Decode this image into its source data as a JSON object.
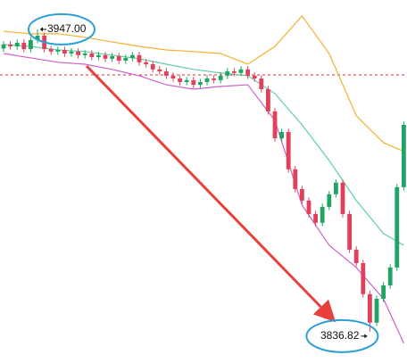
{
  "chart_data": {
    "type": "candlestick",
    "ylim": [
      3825.4,
      3957.7
    ],
    "up_color": "#1fa463",
    "down_color": "#e2405a",
    "open": [
      3940.0,
      3941.5,
      3940.8,
      3942.1,
      3939.8,
      3943.1,
      3944.7,
      3939.8,
      3938.9,
      3939.5,
      3938.2,
      3938.9,
      3937.6,
      3938.2,
      3936.9,
      3937.6,
      3936.3,
      3937.2,
      3935.6,
      3936.6,
      3937.6,
      3935.0,
      3934.3,
      3932.4,
      3931.7,
      3930.1,
      3929.1,
      3927.8,
      3928.5,
      3926.8,
      3927.8,
      3929.1,
      3928.5,
      3930.1,
      3931.7,
      3931.1,
      3932.4,
      3930.1,
      3929.1,
      3925.2,
      3917.1,
      3907.3,
      3909.6,
      3896.0,
      3888.8,
      3884.6,
      3879.7,
      3876.5,
      3882.3,
      3886.9,
      3891.1,
      3879.7,
      3866.7,
      3861.8,
      3850.5,
      3840.1,
      3848.8,
      3853.7,
      3860.2,
      3889.5
    ],
    "high": [
      3942.7,
      3942.7,
      3943.3,
      3943.3,
      3944.3,
      3947.0,
      3945.9,
      3941.0,
      3940.7,
      3940.7,
      3940.1,
      3940.1,
      3939.4,
      3939.4,
      3938.8,
      3938.8,
      3938.4,
      3938.4,
      3937.8,
      3938.8,
      3938.8,
      3936.2,
      3935.5,
      3933.6,
      3932.9,
      3931.3,
      3930.3,
      3929.7,
      3929.7,
      3929.0,
      3930.3,
      3930.3,
      3931.3,
      3932.9,
      3932.9,
      3933.6,
      3933.6,
      3931.3,
      3930.3,
      3926.4,
      3918.3,
      3910.8,
      3910.8,
      3897.2,
      3890.0,
      3885.8,
      3880.9,
      3883.5,
      3888.1,
      3892.3,
      3892.3,
      3880.9,
      3867.9,
      3863.0,
      3851.7,
      3850.0,
      3854.9,
      3861.4,
      3890.7,
      3913.4
    ],
    "low": [
      3938.8,
      3939.6,
      3939.6,
      3938.6,
      3938.6,
      3941.9,
      3938.6,
      3937.7,
      3937.7,
      3937.0,
      3937.0,
      3936.4,
      3936.4,
      3935.7,
      3935.7,
      3935.1,
      3935.1,
      3934.4,
      3934.4,
      3935.4,
      3933.8,
      3933.1,
      3931.2,
      3930.5,
      3928.9,
      3927.9,
      3926.6,
      3926.6,
      3925.6,
      3925.6,
      3926.6,
      3927.3,
      3927.3,
      3928.9,
      3929.9,
      3929.9,
      3928.9,
      3927.9,
      3924.0,
      3915.9,
      3906.1,
      3906.1,
      3894.8,
      3887.6,
      3883.4,
      3878.5,
      3875.3,
      3875.3,
      3881.1,
      3885.7,
      3878.5,
      3865.5,
      3860.6,
      3849.3,
      3836.82,
      3838.9,
      3847.6,
      3852.5,
      3859.0,
      3888.3
    ],
    "close": [
      3941.5,
      3940.8,
      3942.1,
      3939.8,
      3943.1,
      3944.7,
      3939.8,
      3938.9,
      3939.5,
      3938.2,
      3938.9,
      3937.6,
      3938.2,
      3936.9,
      3937.6,
      3936.3,
      3937.2,
      3935.6,
      3936.6,
      3937.6,
      3935.0,
      3934.3,
      3932.4,
      3931.7,
      3930.1,
      3929.1,
      3927.8,
      3928.5,
      3926.8,
      3927.8,
      3929.1,
      3928.5,
      3930.1,
      3931.7,
      3931.1,
      3932.4,
      3930.1,
      3929.1,
      3925.2,
      3917.1,
      3907.3,
      3909.6,
      3896.0,
      3888.8,
      3884.6,
      3879.7,
      3876.5,
      3882.3,
      3886.9,
      3891.1,
      3879.7,
      3866.7,
      3861.8,
      3850.5,
      3840.1,
      3848.8,
      3853.7,
      3860.2,
      3889.5,
      3912.2
    ],
    "bands": [
      {
        "color": "#f2b233",
        "x": [
          0,
          4,
          8,
          12,
          16,
          20,
          24,
          28,
          32,
          36,
          40,
          44,
          48,
          52,
          56,
          59
        ],
        "values": [
          3946.3,
          3945.4,
          3945.4,
          3944.1,
          3942.4,
          3940.8,
          3939.5,
          3938.9,
          3938.2,
          3934.3,
          3940.8,
          3951.9,
          3938.2,
          3915.5,
          3905.7,
          3902.5
        ]
      },
      {
        "color": "#5fcfa5",
        "x": [
          0,
          4,
          8,
          12,
          16,
          20,
          24,
          28,
          32,
          36,
          40,
          44,
          48,
          52,
          56,
          59
        ],
        "values": [
          3941.5,
          3940.8,
          3939.5,
          3938.9,
          3937.6,
          3936.3,
          3934.3,
          3932.4,
          3931.1,
          3930.1,
          3923.6,
          3912.2,
          3899.2,
          3884.6,
          3872.6,
          3868.3
        ]
      },
      {
        "color": "#d060c8",
        "x": [
          0,
          4,
          8,
          12,
          16,
          20,
          24,
          28,
          32,
          36,
          40,
          44,
          48,
          52,
          56,
          59
        ],
        "values": [
          3938.2,
          3936.6,
          3935.0,
          3934.3,
          3932.4,
          3930.1,
          3926.8,
          3925.2,
          3926.2,
          3926.8,
          3913.8,
          3883.0,
          3868.3,
          3860.2,
          3848.8,
          3832.6
        ]
      }
    ],
    "ref_line": {
      "value": 3930.4,
      "color": "#d33"
    },
    "annotations": [
      {
        "label": "3947.00",
        "value": 3947.0
      },
      {
        "label": "3836.82",
        "value": 3836.82
      }
    ]
  }
}
